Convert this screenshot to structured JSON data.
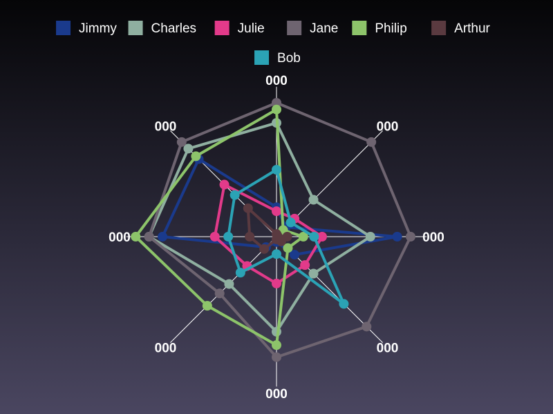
{
  "chart_data": {
    "type": "radar",
    "axes": [
      "000",
      "000",
      "000",
      "000",
      "000",
      "000",
      "000",
      "000"
    ],
    "range": [
      0,
      100
    ],
    "grid": true,
    "legend_position": "top",
    "series": [
      {
        "name": "Jimmy",
        "color": "#1a3a8c",
        "values": [
          22,
          10,
          90,
          19,
          4,
          11,
          85,
          82
        ]
      },
      {
        "name": "Charles",
        "color": "#8fafa0",
        "values": [
          85,
          39,
          70,
          39,
          71,
          50,
          95,
          93
        ]
      },
      {
        "name": "Julie",
        "color": "#e23a8a",
        "values": [
          19,
          19,
          34,
          30,
          35,
          31,
          46,
          55
        ]
      },
      {
        "name": "Jane",
        "color": "#6e6470",
        "values": [
          100,
          100,
          100,
          95,
          90,
          60,
          95,
          100
        ]
      },
      {
        "name": "Philip",
        "color": "#8dc46a",
        "values": [
          95,
          7,
          20,
          12,
          81,
          73,
          105,
          85
        ]
      },
      {
        "name": "Arthur",
        "color": "#5a3a40",
        "values": [
          2,
          1,
          8,
          5,
          2,
          13,
          20,
          30
        ]
      },
      {
        "name": "Bob",
        "color": "#2ba3b5",
        "values": [
          50,
          15,
          28,
          71,
          13,
          38,
          36,
          44
        ]
      }
    ]
  }
}
